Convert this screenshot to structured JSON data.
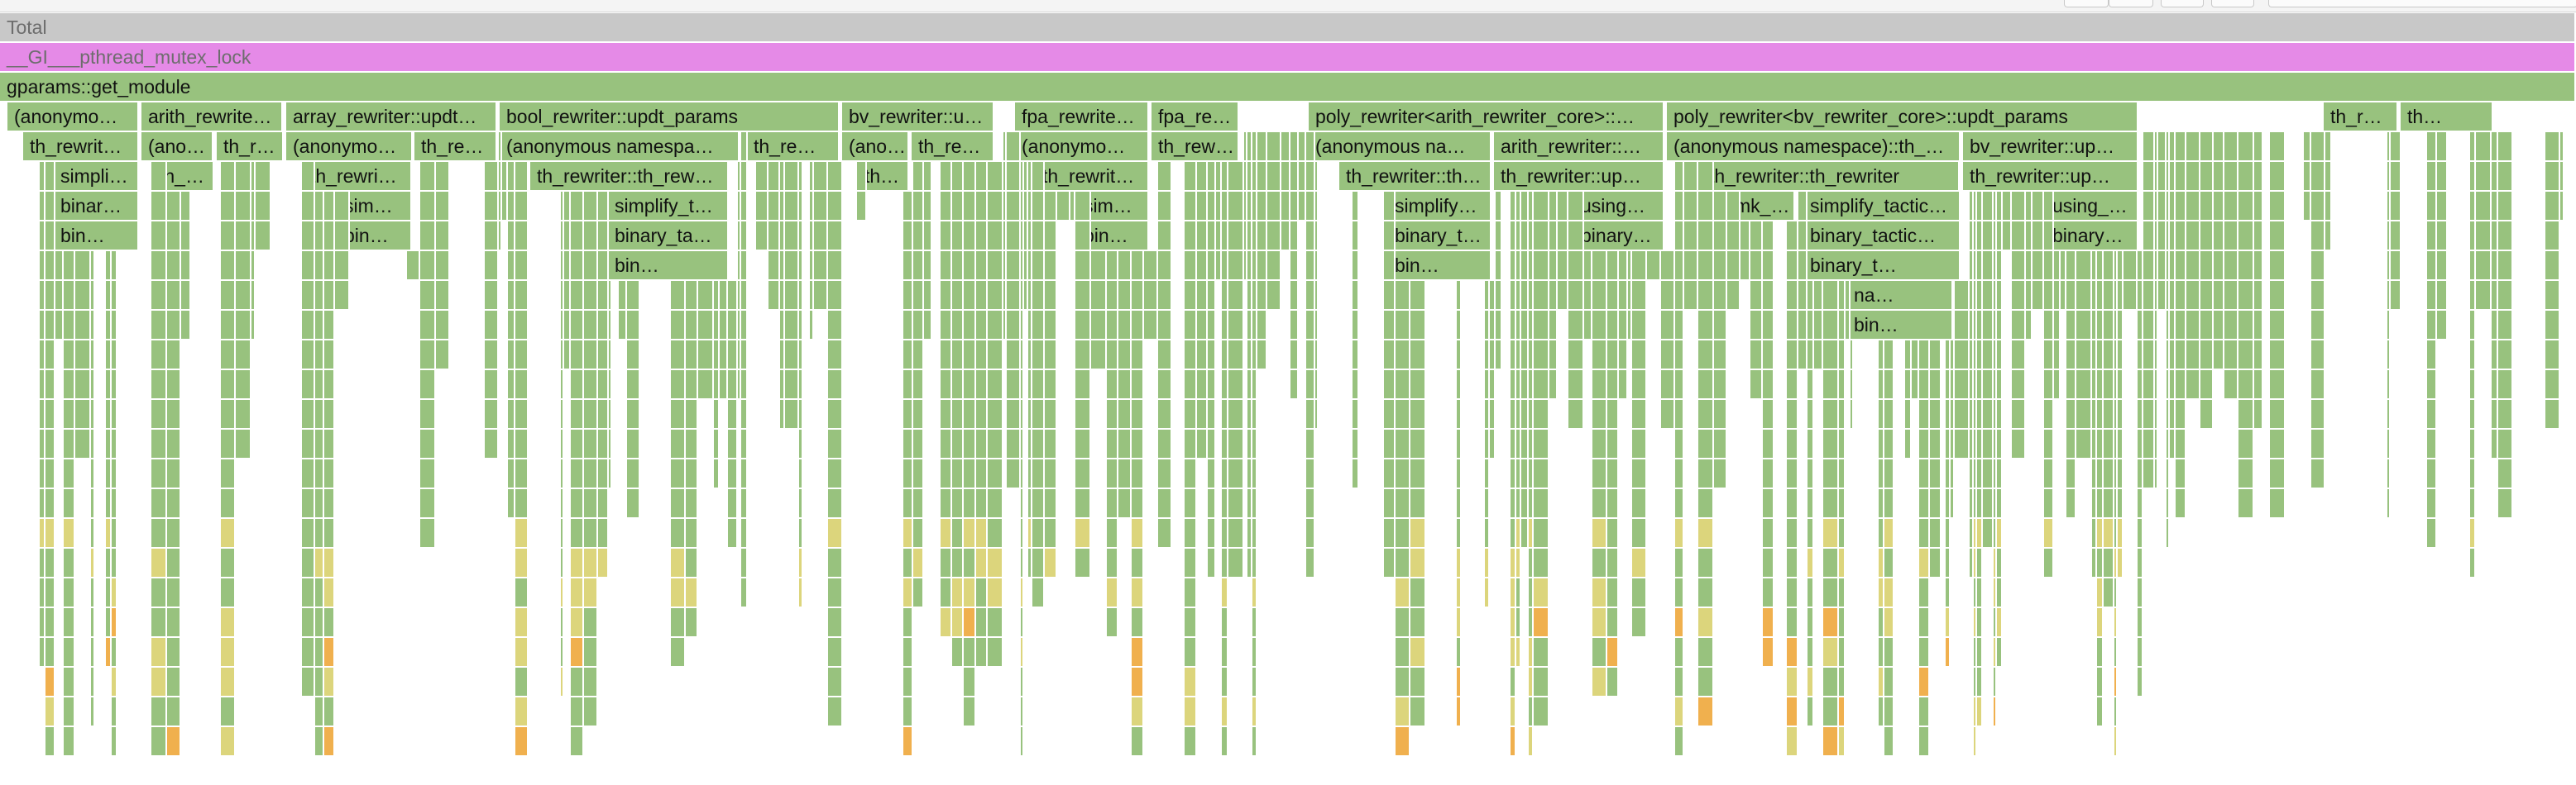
{
  "colors": {
    "total": "#c8c8c8",
    "mutex": "#e58ae7",
    "green": "#98c27e",
    "yellow": "#dcd57c",
    "orange": "#f0b04e",
    "white": "#ffffff"
  },
  "flamegraph": {
    "rows": [
      [
        {
          "label": "Total",
          "start": 0,
          "end": 1,
          "kind": "total"
        }
      ],
      [
        {
          "label": "__GI___pthread_mutex_lock",
          "start": 0,
          "end": 1,
          "kind": "mutex"
        }
      ],
      [
        {
          "label": "gparams::get_module",
          "start": 0,
          "end": 1,
          "kind": "green"
        }
      ],
      [
        {
          "label": "(anonymous namespace)::th_rewriter_cfg",
          "start": 0.003,
          "end": 0.054,
          "kind": "green"
        },
        {
          "label": "arith_rewriter::updt_params",
          "start": 0.055,
          "end": 0.11,
          "kind": "green"
        },
        {
          "label": "array_rewriter::updt_params",
          "start": 0.111,
          "end": 0.193,
          "kind": "green"
        },
        {
          "label": "bool_rewriter::updt_params",
          "start": 0.194,
          "end": 0.326,
          "kind": "green"
        },
        {
          "label": "bv_rewriter::updt_params",
          "start": 0.327,
          "end": 0.386,
          "kind": "green"
        },
        {
          "label": "fpa_rewriter::updt_params",
          "start": 0.394,
          "end": 0.446,
          "kind": "green"
        },
        {
          "label": "fpa_rewriter::updt_params",
          "start": 0.447,
          "end": 0.481,
          "kind": "green"
        },
        {
          "label": "poly_rewriter<arith_rewriter_core>::updt_params",
          "start": 0.508,
          "end": 0.646,
          "kind": "green"
        },
        {
          "label": "poly_rewriter<bv_rewriter_core>::updt_params",
          "start": 0.647,
          "end": 0.83,
          "kind": "green"
        },
        {
          "label": "th_rewriter::updt_params",
          "start": 0.902,
          "end": 0.931,
          "kind": "green"
        },
        {
          "label": "th_rewriter",
          "start": 0.932,
          "end": 0.968,
          "kind": "green"
        }
      ],
      [
        {
          "label": "th_rewriter::th_rewriter",
          "start": 0.009,
          "end": 0.054,
          "kind": "green"
        },
        {
          "label": "(anonymous namespace)::th_rewriter_cfg",
          "start": 0.055,
          "end": 0.083,
          "kind": "green"
        },
        {
          "label": "th_rewriter::updt_params",
          "start": 0.084,
          "end": 0.11,
          "kind": "green"
        },
        {
          "label": "(anonymous namespace)::th_rewriter_cfg",
          "start": 0.111,
          "end": 0.16,
          "kind": "green"
        },
        {
          "label": "th_rewriter::updt_params",
          "start": 0.161,
          "end": 0.193,
          "kind": "green"
        },
        {
          "label": "(anonymous namespace)::th_rewriter_cfg",
          "start": 0.194,
          "end": 0.287,
          "kind": "green"
        },
        {
          "label": "th_rewriter",
          "start": 0.29,
          "end": 0.326,
          "kind": "green"
        },
        {
          "label": "(anonymous namespace)::th_rewriter_cfg",
          "start": 0.327,
          "end": 0.353,
          "kind": "green"
        },
        {
          "label": "th_rewriter::updt_params",
          "start": 0.354,
          "end": 0.386,
          "kind": "green"
        },
        {
          "label": "(anonymous namespace)::th_rewriter_cfg",
          "start": 0.394,
          "end": 0.446,
          "kind": "green"
        },
        {
          "label": "th_rewriter::updt_params",
          "start": 0.447,
          "end": 0.481,
          "kind": "green"
        },
        {
          "label": "(anonymous namespace)::th_rewriter_cfg",
          "start": 0.508,
          "end": 0.579,
          "kind": "green"
        },
        {
          "label": "arith_rewriter::updt_params",
          "start": 0.58,
          "end": 0.646,
          "kind": "green"
        },
        {
          "label": "(anonymous namespace)::th_rewriter_cfg",
          "start": 0.647,
          "end": 0.761,
          "kind": "green"
        },
        {
          "label": "bv_rewriter::updt_params",
          "start": 0.762,
          "end": 0.83,
          "kind": "green"
        }
      ],
      [
        {
          "label": "simplifier",
          "start": 0.021,
          "end": 0.054,
          "kind": "green"
        },
        {
          "label": "th_rewriter",
          "start": 0.059,
          "end": 0.083,
          "kind": "green"
        },
        {
          "label": "th_rewriter::th_rewriter",
          "start": 0.118,
          "end": 0.16,
          "kind": "green"
        },
        {
          "label": "th_rewriter::th_rewriter",
          "start": 0.206,
          "end": 0.283,
          "kind": "green"
        },
        {
          "label": "th_rewriter",
          "start": 0.333,
          "end": 0.353,
          "kind": "green"
        },
        {
          "label": "th_rewriter::th_rewriter",
          "start": 0.402,
          "end": 0.446,
          "kind": "green"
        },
        {
          "label": "th_rewriter::th_rewriter",
          "start": 0.52,
          "end": 0.579,
          "kind": "green"
        },
        {
          "label": "th_rewriter::updt_params",
          "start": 0.58,
          "end": 0.646,
          "kind": "green"
        },
        {
          "label": "th_rewriter::th_rewriter",
          "start": 0.661,
          "end": 0.761,
          "kind": "green"
        },
        {
          "label": "th_rewriter::updt_params",
          "start": 0.762,
          "end": 0.83,
          "kind": "green"
        }
      ],
      [
        {
          "label": "binary_tactical",
          "start": 0.021,
          "end": 0.054,
          "kind": "green"
        },
        {
          "label": "simplifier",
          "start": 0.131,
          "end": 0.16,
          "kind": "green"
        },
        {
          "label": "simplify_tactic",
          "start": 0.236,
          "end": 0.283,
          "kind": "green"
        },
        {
          "label": "simplifier",
          "start": 0.418,
          "end": 0.446,
          "kind": "green"
        },
        {
          "label": "simplify_tactic",
          "start": 0.539,
          "end": 0.579,
          "kind": "green"
        },
        {
          "label": "using_params",
          "start": 0.611,
          "end": 0.646,
          "kind": "green"
        },
        {
          "label": "mk_simplify",
          "start": 0.671,
          "end": 0.697,
          "kind": "green"
        },
        {
          "label": "simplify_tactic::simplify",
          "start": 0.7,
          "end": 0.761,
          "kind": "green"
        },
        {
          "label": "using_params",
          "start": 0.794,
          "end": 0.83,
          "kind": "green"
        }
      ],
      [
        {
          "label": "binary_tactical",
          "start": 0.021,
          "end": 0.054,
          "kind": "green"
        },
        {
          "label": "binary_tactical",
          "start": 0.131,
          "end": 0.16,
          "kind": "green"
        },
        {
          "label": "binary_tactical",
          "start": 0.236,
          "end": 0.283,
          "kind": "green"
        },
        {
          "label": "binary_tactical",
          "start": 0.418,
          "end": 0.446,
          "kind": "green"
        },
        {
          "label": "binary_tactical",
          "start": 0.539,
          "end": 0.579,
          "kind": "green"
        },
        {
          "label": "binary_tactical",
          "start": 0.611,
          "end": 0.646,
          "kind": "green"
        },
        {
          "label": "binary_tactical::apply",
          "start": 0.7,
          "end": 0.761,
          "kind": "green"
        },
        {
          "label": "binary_tactical",
          "start": 0.794,
          "end": 0.83,
          "kind": "green"
        }
      ],
      [
        {
          "label": "binary_tactical",
          "start": 0.236,
          "end": 0.283,
          "kind": "green"
        },
        {
          "label": "binary_tactical",
          "start": 0.539,
          "end": 0.579,
          "kind": "green"
        },
        {
          "label": "binary_tactical",
          "start": 0.7,
          "end": 0.761,
          "kind": "green"
        }
      ],
      [
        {
          "label": "nary_tactical",
          "start": 0.717,
          "end": 0.758,
          "kind": "green"
        }
      ],
      [
        {
          "label": "binary_tactical",
          "start": 0.717,
          "end": 0.758,
          "kind": "green"
        }
      ]
    ],
    "labels_shown": {
      "row0": [
        "Total"
      ],
      "row1": [
        "__GI___pthread_mutex_lock"
      ],
      "row2": [
        "gparams::get_module"
      ],
      "row3": [
        "(anonymo…",
        "arith_rewrite…",
        "array_rewriter::updt…",
        "bool_rewriter::updt_params",
        "bv_rewriter::u…",
        "fpa_rewrite…",
        "fpa_re…",
        "poly_rewriter<arith_rewriter_core>::…",
        "poly_rewriter<bv_rewriter_core>::updt_params",
        "th_r…",
        "th…"
      ],
      "row4": [
        "th_rewrit…",
        "(ano…",
        "th_r…",
        "(anonymo…",
        "th_re…",
        "(anonymous namespa…",
        "th_re…",
        "(ano…",
        "th_re…",
        "(anonymo…",
        "th_rew…",
        "(anonymous na…",
        "arith_rewriter::…",
        "(anonymous namespace)::th_…",
        "bv_rewriter::up…"
      ],
      "row5": [
        "simpli…",
        "th_…",
        "th_rewri…",
        "th_rewriter::th_rew…",
        "th…",
        "th_rewrit…",
        "th_rewriter::th…",
        "th_rewriter::up…",
        "th_rewriter::th_rewriter",
        "th_rewriter::up…"
      ],
      "row6": [
        "binar…",
        "sim…",
        "simplify_t…",
        "sim…",
        "simplify…",
        "using…",
        "mk_…",
        "simplify_tactic…",
        "using_…"
      ],
      "row7": [
        "bin…",
        "bin…",
        "binary_ta…",
        "bin…",
        "binary_t…",
        "binary…",
        "binary_tactic…",
        "binary…"
      ],
      "row8": [
        "bin…",
        "bin…",
        "binary_t…"
      ],
      "row9": [
        "na…"
      ],
      "row10": [
        "bin…"
      ]
    }
  }
}
